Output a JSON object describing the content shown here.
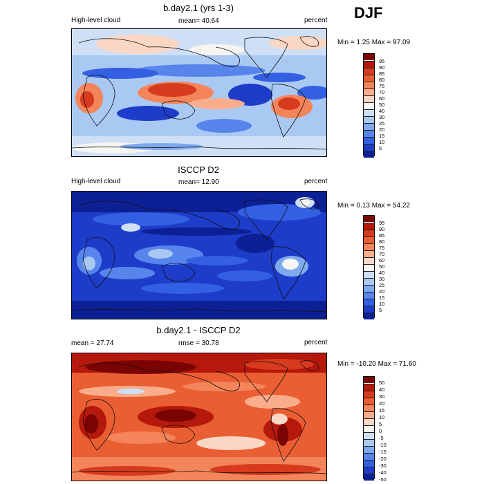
{
  "season": "DJF",
  "panels": [
    {
      "title": "b.day2.1 (yrs 1-3)",
      "left_label": "High-level cloud",
      "center_label": "mean=  40.64",
      "units": "percent",
      "minmax": "Min =   1.25 Max =  97.09",
      "map_name": "model-high-cloud-map",
      "colorbar_labels": [
        "95",
        "90",
        "85",
        "80",
        "75",
        "70",
        "60",
        "50",
        "40",
        "30",
        "25",
        "20",
        "15",
        "10",
        "5"
      ]
    },
    {
      "title": "ISCCP D2",
      "left_label": "High-level cloud",
      "center_label": "mean=  12.90",
      "units": "percent",
      "minmax": "Min =   0.13 Max =  54.22",
      "map_name": "isccp-high-cloud-map",
      "colorbar_labels": [
        "95",
        "90",
        "85",
        "80",
        "75",
        "70",
        "60",
        "50",
        "40",
        "30",
        "25",
        "20",
        "15",
        "10",
        "5"
      ]
    },
    {
      "title": "b.day2.1 - ISCCP D2",
      "left_label": "mean =  27.74",
      "center_label": "rmse =  30.78",
      "units": "percent",
      "minmax": "Min = -10.20 Max =  71.60",
      "map_name": "difference-map",
      "colorbar_labels": [
        "50",
        "40",
        "30",
        "20",
        "15",
        "10",
        "5",
        "0",
        "-5",
        "-10",
        "-15",
        "-20",
        "-30",
        "-40",
        "-50"
      ]
    }
  ],
  "colors": {
    "scale": [
      "#7a0403",
      "#b5190c",
      "#d73a1c",
      "#ea5e33",
      "#f4845a",
      "#f9ad8c",
      "#fad6c4",
      "#f7f5f2",
      "#cfe0f6",
      "#a9c9f2",
      "#7faaf0",
      "#5785ec",
      "#3360e2",
      "#1d3cc9",
      "#0d1f94"
    ]
  },
  "chart_data": [
    {
      "type": "heatmap",
      "title": "b.day2.1 (yrs 1-3)",
      "variable": "High-level cloud",
      "units": "percent",
      "mean": 40.64,
      "min": 1.25,
      "max": 97.09,
      "levels": [
        5,
        10,
        15,
        20,
        25,
        30,
        40,
        50,
        60,
        70,
        75,
        80,
        85,
        90,
        95
      ]
    },
    {
      "type": "heatmap",
      "title": "ISCCP D2",
      "variable": "High-level cloud",
      "units": "percent",
      "mean": 12.9,
      "min": 0.13,
      "max": 54.22,
      "levels": [
        5,
        10,
        15,
        20,
        25,
        30,
        40,
        50,
        60,
        70,
        75,
        80,
        85,
        90,
        95
      ]
    },
    {
      "type": "heatmap",
      "title": "b.day2.1 - ISCCP D2",
      "units": "percent",
      "mean": 27.74,
      "rmse": 30.78,
      "min": -10.2,
      "max": 71.6,
      "levels": [
        -50,
        -40,
        -30,
        -20,
        -15,
        -10,
        -5,
        0,
        5,
        10,
        15,
        20,
        30,
        40,
        50
      ]
    }
  ]
}
